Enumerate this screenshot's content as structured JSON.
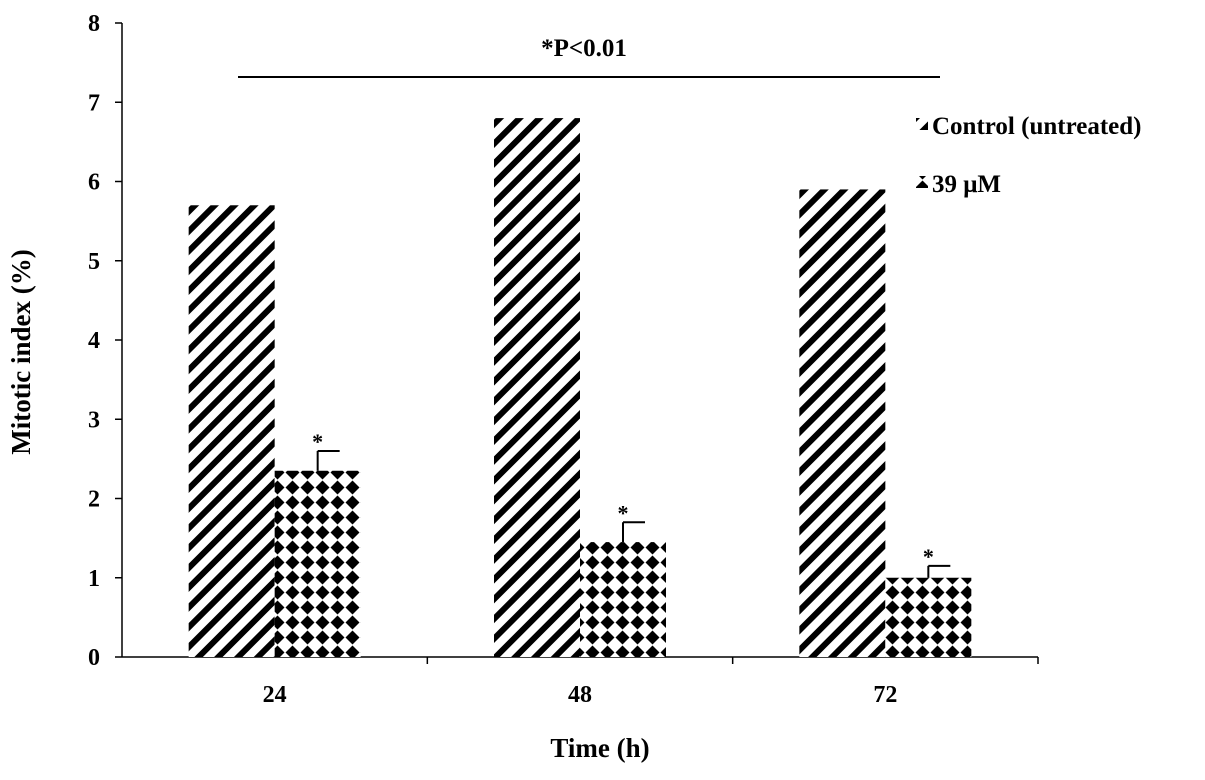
{
  "chart_data": {
    "type": "bar",
    "categories": [
      "24",
      "48",
      "72"
    ],
    "series": [
      {
        "name": "Control (untreated)",
        "values": [
          5.7,
          6.8,
          5.9
        ],
        "errors": [
          null,
          null,
          null
        ],
        "pattern": "hatch"
      },
      {
        "name": "39 μM",
        "values": [
          2.35,
          1.45,
          1.0
        ],
        "errors": [
          0.25,
          0.25,
          0.15
        ],
        "pattern": "diamond"
      }
    ],
    "title": "",
    "annotation": "*P<0.01",
    "significance_marker": "*",
    "xlabel": "Time (h)",
    "ylabel": "Mitotic index (%)",
    "ylim": [
      0,
      8
    ],
    "yticks": [
      "0",
      "1",
      "2",
      "3",
      "4",
      "5",
      "6",
      "7",
      "8"
    ],
    "grid": false,
    "legend_position": "top-right"
  }
}
